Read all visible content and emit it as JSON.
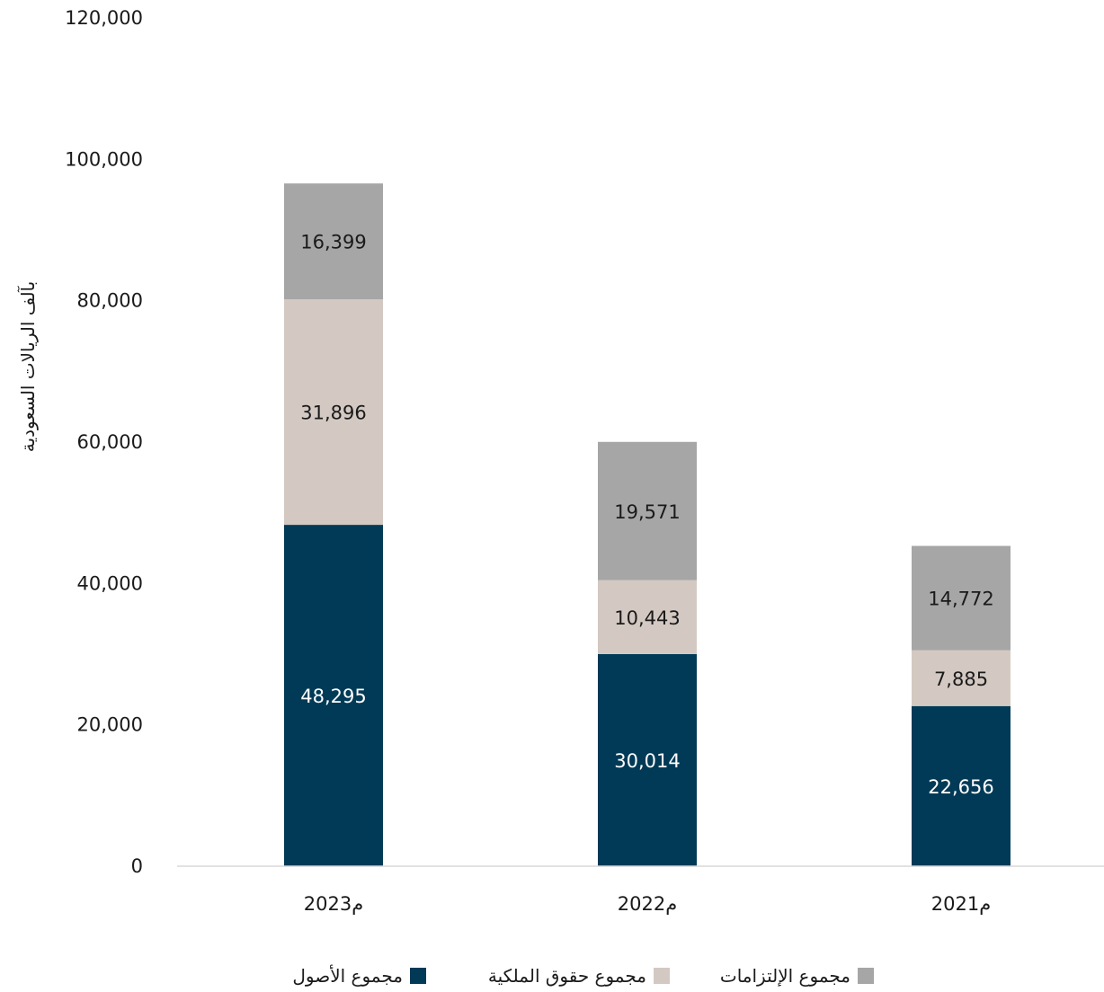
{
  "chart_data": {
    "type": "bar",
    "stacked": true,
    "categories": [
      "2023م",
      "2022م",
      "2021م"
    ],
    "series": [
      {
        "name": "مجموع الأصول",
        "values": [
          48295,
          30014,
          22656
        ],
        "color": "#003a56",
        "label_color": "#ffffff"
      },
      {
        "name": "مجموع حقوق الملكية",
        "values": [
          31896,
          10443,
          7885
        ],
        "color": "#d3c9c2",
        "label_color": "#1a1a1a"
      },
      {
        "name": "مجموع الإلتزامات",
        "values": [
          16399,
          19571,
          14772
        ],
        "color": "#a6a6a6",
        "label_color": "#1a1a1a"
      }
    ],
    "data_labels": [
      [
        "48,295",
        "30,014",
        "22,656"
      ],
      [
        "31,896",
        "10,443",
        "7,885"
      ],
      [
        "16,399",
        "19,571",
        "14,772"
      ]
    ],
    "yticks": [
      0,
      20000,
      40000,
      60000,
      80000,
      100000,
      120000
    ],
    "ytick_labels": [
      "0",
      "20,000",
      "40,000",
      "60,000",
      "80,000",
      "100,000",
      "120,000"
    ],
    "ylim": [
      0,
      120000
    ],
    "ylabel": "بآلف الريالات السعودية",
    "xlabel": "",
    "grid": false,
    "legend_position": "bottom",
    "legend_order": [
      2,
      1,
      0
    ],
    "axis_color": "#d9d9d9"
  }
}
